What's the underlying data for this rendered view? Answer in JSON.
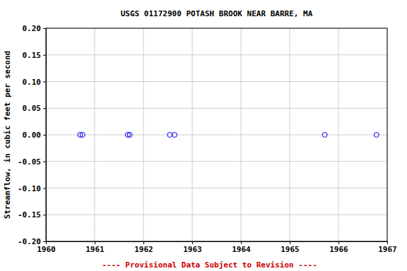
{
  "chart_data": {
    "type": "scatter",
    "title": "USGS 01172900 POTASH BROOK NEAR BARRE, MA",
    "y_label": "Streamflow, in cubic feet per second",
    "annotations": [
      "---- Provisional Data Subject to Revision ----"
    ],
    "x": [
      1960.7,
      1960.75,
      1961.68,
      1961.72,
      1962.54,
      1962.64,
      1965.72,
      1966.78
    ],
    "values": [
      0,
      0,
      0,
      0,
      0,
      0,
      0,
      0
    ],
    "color": "#0000ff",
    "marker": "circle-open",
    "xlim": [
      1960,
      1967
    ],
    "xticks": [
      1960,
      1961,
      1962,
      1963,
      1964,
      1965,
      1966,
      1967
    ],
    "ylim": [
      -0.2,
      0.2
    ],
    "yticks": [
      {
        "value": -0.2,
        "label": "-0.20"
      },
      -0.15,
      {
        "value": -0.1,
        "label": "-0.10"
      },
      -0.05,
      {
        "value": 0,
        "label": "0.00"
      },
      0.05,
      {
        "value": 0.1,
        "label": "0.10"
      },
      0.15,
      {
        "value": 0.2,
        "label": "0.20"
      }
    ],
    "grid": true
  }
}
